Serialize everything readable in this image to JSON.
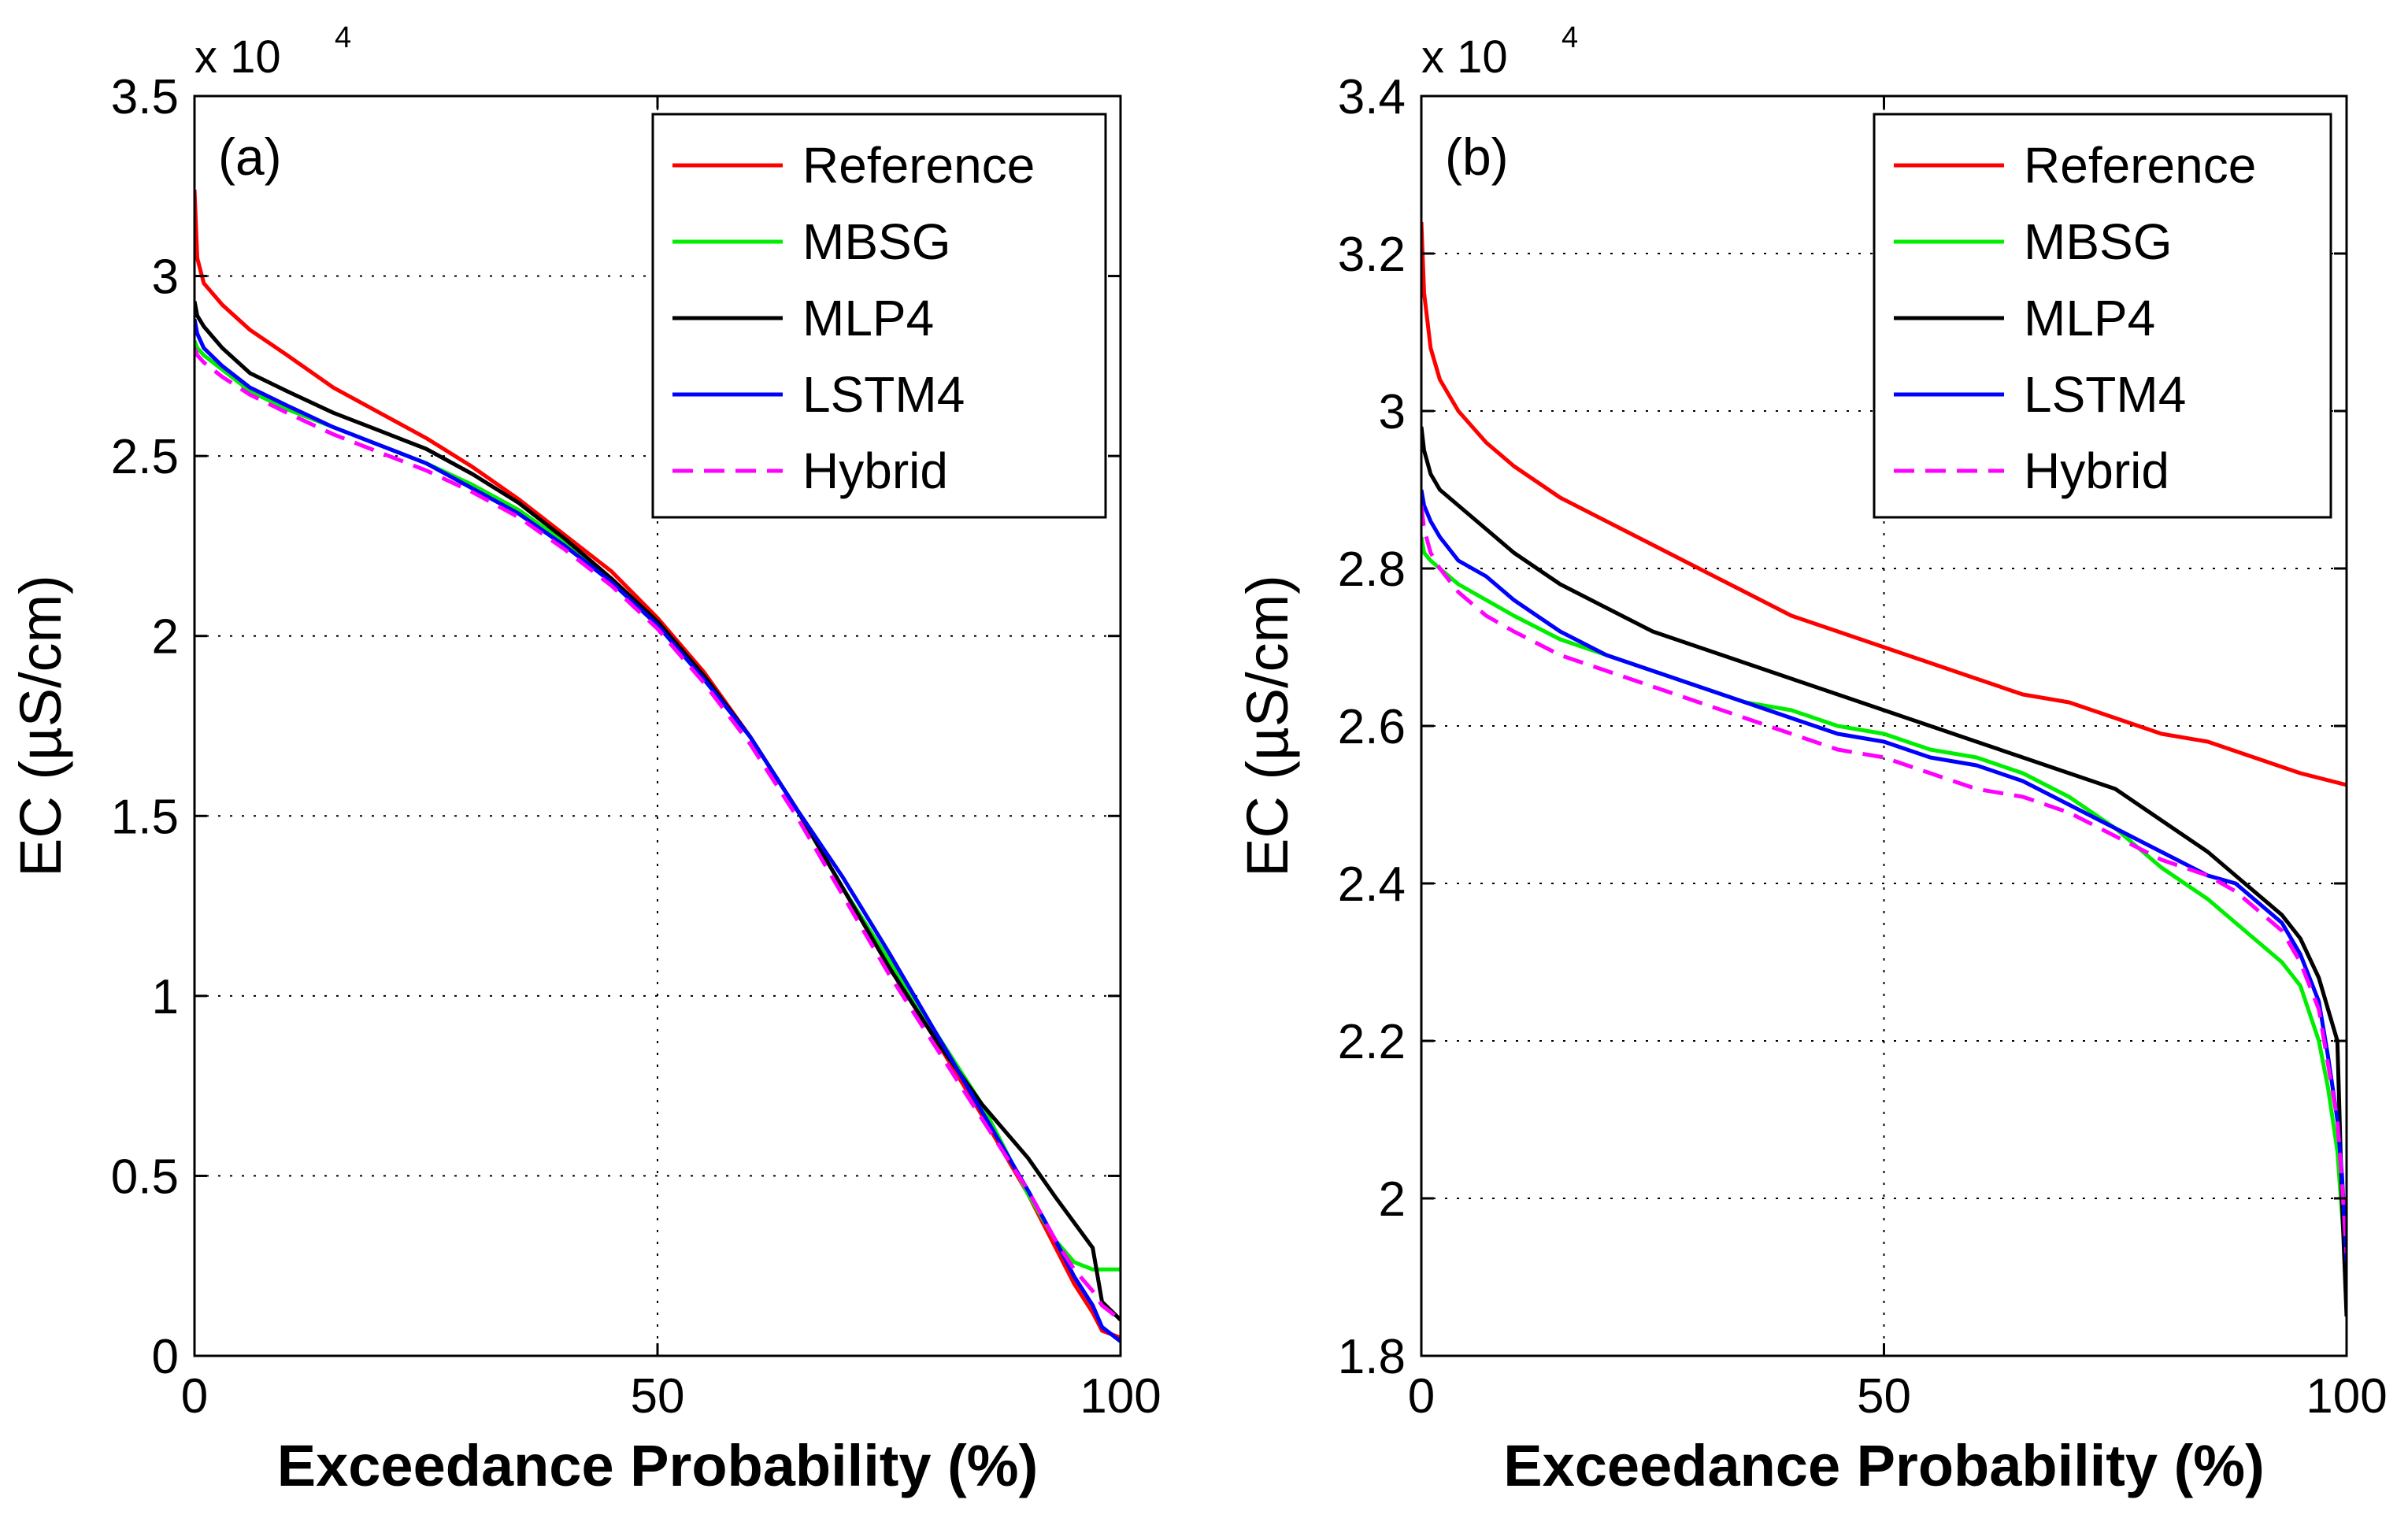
{
  "chart_data": [
    {
      "type": "line",
      "panel_label": "(a)",
      "xlabel": "Exceedance Probability (%)",
      "ylabel": "EC (µS/cm)",
      "multiplier": "x 10",
      "multiplier_exp": "4",
      "xlim": [
        0,
        100
      ],
      "ylim": [
        0,
        3.5
      ],
      "xticks": [
        0,
        50,
        100
      ],
      "yticks": [
        0,
        0.5,
        1,
        1.5,
        2,
        2.5,
        3,
        3.5
      ],
      "ytick_labels": [
        "0",
        "0.5",
        "1",
        "1.5",
        "2",
        "2.5",
        "3",
        "3.5"
      ],
      "grid": true,
      "legend_position": "top-right",
      "series": [
        {
          "name": "Reference",
          "color": "#ff0000",
          "dash": false,
          "x": [
            0,
            0.3,
            1,
            3,
            6,
            10,
            15,
            20,
            25,
            30,
            35,
            40,
            45,
            50,
            55,
            60,
            65,
            70,
            75,
            80,
            85,
            90,
            93,
            95,
            97,
            98,
            100
          ],
          "y": [
            3.24,
            3.05,
            2.98,
            2.92,
            2.85,
            2.78,
            2.69,
            2.62,
            2.55,
            2.47,
            2.38,
            2.28,
            2.18,
            2.05,
            1.9,
            1.72,
            1.52,
            1.3,
            1.08,
            0.88,
            0.67,
            0.45,
            0.3,
            0.2,
            0.12,
            0.07,
            0.05
          ]
        },
        {
          "name": "MBSG",
          "color": "#00ee00",
          "dash": false,
          "x": [
            0,
            0.3,
            1,
            3,
            6,
            10,
            15,
            20,
            25,
            30,
            35,
            40,
            45,
            50,
            55,
            60,
            65,
            70,
            72,
            75,
            80,
            85,
            90,
            93,
            95,
            97,
            100
          ],
          "y": [
            2.82,
            2.8,
            2.78,
            2.74,
            2.68,
            2.63,
            2.58,
            2.53,
            2.48,
            2.42,
            2.35,
            2.26,
            2.15,
            2.03,
            1.88,
            1.72,
            1.52,
            1.3,
            1.22,
            1.1,
            0.9,
            0.7,
            0.45,
            0.32,
            0.26,
            0.24,
            0.24
          ]
        },
        {
          "name": "MLP4",
          "color": "#000000",
          "dash": false,
          "x": [
            0,
            0.3,
            1,
            3,
            6,
            10,
            15,
            20,
            25,
            30,
            35,
            40,
            45,
            50,
            55,
            60,
            65,
            70,
            75,
            80,
            85,
            90,
            93,
            95,
            97,
            98,
            100
          ],
          "y": [
            2.93,
            2.89,
            2.86,
            2.8,
            2.73,
            2.68,
            2.62,
            2.57,
            2.52,
            2.45,
            2.37,
            2.27,
            2.16,
            2.04,
            1.89,
            1.72,
            1.52,
            1.3,
            1.08,
            0.88,
            0.7,
            0.55,
            0.44,
            0.37,
            0.3,
            0.15,
            0.1
          ]
        },
        {
          "name": "LSTM4",
          "color": "#0000ff",
          "dash": false,
          "x": [
            0,
            0.3,
            1,
            3,
            6,
            10,
            15,
            20,
            25,
            30,
            35,
            40,
            45,
            50,
            55,
            60,
            65,
            70,
            75,
            80,
            85,
            90,
            93,
            95,
            97,
            98,
            100
          ],
          "y": [
            2.88,
            2.84,
            2.8,
            2.75,
            2.69,
            2.64,
            2.58,
            2.53,
            2.48,
            2.41,
            2.34,
            2.25,
            2.15,
            2.03,
            1.88,
            1.72,
            1.52,
            1.33,
            1.12,
            0.9,
            0.68,
            0.46,
            0.32,
            0.22,
            0.14,
            0.08,
            0.04
          ]
        },
        {
          "name": "Hybrid",
          "color": "#ff00ff",
          "dash": true,
          "x": [
            0,
            0.3,
            1,
            3,
            6,
            10,
            15,
            20,
            25,
            30,
            35,
            40,
            45,
            50,
            55,
            60,
            65,
            70,
            75,
            80,
            85,
            90,
            93,
            95,
            97,
            98,
            100
          ],
          "y": [
            2.8,
            2.78,
            2.76,
            2.72,
            2.67,
            2.62,
            2.56,
            2.51,
            2.46,
            2.4,
            2.33,
            2.24,
            2.14,
            2.02,
            1.87,
            1.7,
            1.5,
            1.28,
            1.06,
            0.86,
            0.66,
            0.46,
            0.32,
            0.24,
            0.18,
            0.14,
            0.1
          ]
        }
      ]
    },
    {
      "type": "line",
      "panel_label": "(b)",
      "xlabel": "Exceedance Probability (%)",
      "ylabel": "EC (µS/cm)",
      "multiplier": "x 10",
      "multiplier_exp": "4",
      "xlim": [
        0,
        100
      ],
      "ylim": [
        1.8,
        3.4
      ],
      "xticks": [
        0,
        50,
        100
      ],
      "yticks": [
        1.8,
        2.0,
        2.2,
        2.4,
        2.6,
        2.8,
        3.0,
        3.2,
        3.4
      ],
      "ytick_labels": [
        "1.8",
        "2",
        "2.2",
        "2.4",
        "2.6",
        "2.8",
        "3",
        "3.2",
        "3.4"
      ],
      "grid": true,
      "legend_position": "top-right",
      "series": [
        {
          "name": "Reference",
          "color": "#ff0000",
          "dash": false,
          "x": [
            0,
            0.3,
            1,
            2,
            4,
            7,
            10,
            15,
            20,
            25,
            30,
            35,
            40,
            45,
            50,
            55,
            60,
            65,
            70,
            75,
            80,
            85,
            90,
            95,
            100
          ],
          "y": [
            3.24,
            3.15,
            3.08,
            3.04,
            3.0,
            2.96,
            2.93,
            2.89,
            2.86,
            2.83,
            2.8,
            2.77,
            2.74,
            2.72,
            2.7,
            2.68,
            2.66,
            2.64,
            2.63,
            2.61,
            2.59,
            2.58,
            2.56,
            2.54,
            2.525
          ]
        },
        {
          "name": "MBSG",
          "color": "#00ee00",
          "dash": false,
          "x": [
            0,
            0.3,
            1,
            2,
            4,
            7,
            10,
            15,
            20,
            25,
            30,
            35,
            40,
            45,
            50,
            55,
            60,
            65,
            70,
            75,
            80,
            85,
            88,
            90,
            93,
            95,
            97,
            98,
            99,
            99.5,
            100
          ],
          "y": [
            2.84,
            2.82,
            2.81,
            2.8,
            2.78,
            2.76,
            2.74,
            2.71,
            2.69,
            2.67,
            2.65,
            2.63,
            2.62,
            2.6,
            2.59,
            2.57,
            2.56,
            2.54,
            2.51,
            2.47,
            2.42,
            2.38,
            2.35,
            2.33,
            2.3,
            2.27,
            2.2,
            2.14,
            2.06,
            1.98,
            1.9
          ]
        },
        {
          "name": "MLP4",
          "color": "#000000",
          "dash": false,
          "x": [
            0,
            0.3,
            1,
            2,
            4,
            7,
            10,
            15,
            20,
            25,
            30,
            35,
            40,
            45,
            50,
            55,
            60,
            65,
            70,
            75,
            80,
            85,
            88,
            90,
            93,
            95,
            97,
            98,
            99,
            99.5,
            100
          ],
          "y": [
            2.98,
            2.95,
            2.92,
            2.9,
            2.88,
            2.85,
            2.82,
            2.78,
            2.75,
            2.72,
            2.7,
            2.68,
            2.66,
            2.64,
            2.62,
            2.6,
            2.58,
            2.56,
            2.54,
            2.52,
            2.48,
            2.44,
            2.41,
            2.39,
            2.36,
            2.33,
            2.28,
            2.24,
            2.2,
            2.0,
            1.85
          ]
        },
        {
          "name": "LSTM4",
          "color": "#0000ff",
          "dash": false,
          "x": [
            0,
            0.3,
            1,
            2,
            4,
            7,
            10,
            15,
            20,
            25,
            30,
            35,
            40,
            45,
            50,
            55,
            60,
            65,
            70,
            75,
            80,
            85,
            88,
            90,
            93,
            95,
            97,
            98,
            99,
            99.5,
            100
          ],
          "y": [
            2.9,
            2.88,
            2.86,
            2.84,
            2.81,
            2.79,
            2.76,
            2.72,
            2.69,
            2.67,
            2.65,
            2.63,
            2.61,
            2.59,
            2.58,
            2.56,
            2.55,
            2.53,
            2.5,
            2.47,
            2.44,
            2.41,
            2.4,
            2.38,
            2.35,
            2.31,
            2.25,
            2.18,
            2.1,
            2.03,
            1.92
          ]
        },
        {
          "name": "Hybrid",
          "color": "#ff00ff",
          "dash": true,
          "x": [
            0,
            0.3,
            1,
            2,
            4,
            7,
            10,
            15,
            20,
            25,
            30,
            35,
            40,
            45,
            50,
            55,
            60,
            65,
            70,
            75,
            80,
            85,
            88,
            90,
            93,
            95,
            97,
            98,
            99,
            99.5,
            100
          ],
          "y": [
            2.88,
            2.85,
            2.82,
            2.8,
            2.77,
            2.74,
            2.72,
            2.69,
            2.67,
            2.65,
            2.63,
            2.61,
            2.59,
            2.57,
            2.56,
            2.54,
            2.52,
            2.51,
            2.49,
            2.46,
            2.43,
            2.41,
            2.39,
            2.37,
            2.34,
            2.3,
            2.24,
            2.17,
            2.1,
            2.02,
            1.93
          ]
        }
      ]
    }
  ]
}
